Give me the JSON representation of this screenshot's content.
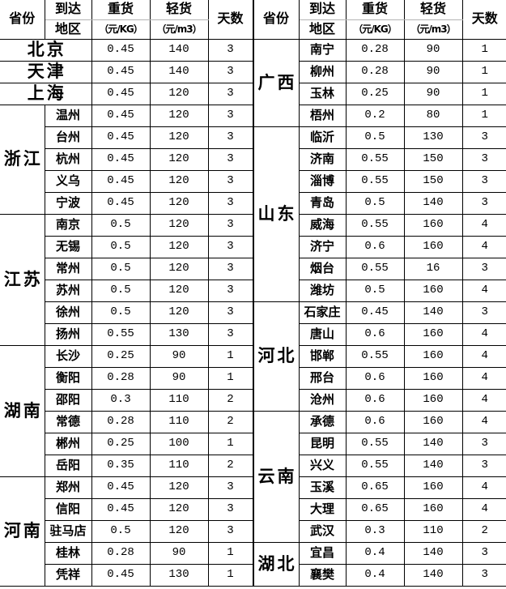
{
  "colors": {
    "background": "#ffffff",
    "text": "#000000",
    "grid_border": "#000000",
    "header_divider": "#b3b3b3"
  },
  "header": {
    "province": "省份",
    "area_line1": "到达",
    "area_line2": "地区",
    "heavy_line1": "重货",
    "heavy_line2": "（元/KG）",
    "light_line1": "轻货",
    "light_line2": "（元/m3）",
    "days": "天数"
  },
  "tables": [
    {
      "side": "left",
      "groups": [
        {
          "province": "北京",
          "merged": true,
          "cities": [
            {
              "name": "北京",
              "heavy": "0.45",
              "light": "140",
              "days": "3"
            }
          ]
        },
        {
          "province": "天津",
          "merged": true,
          "cities": [
            {
              "name": "天津",
              "heavy": "0.45",
              "light": "140",
              "days": "3"
            }
          ]
        },
        {
          "province": "上海",
          "merged": true,
          "cities": [
            {
              "name": "上海",
              "heavy": "0.45",
              "light": "120",
              "days": "3"
            }
          ]
        },
        {
          "province": "浙江",
          "merged": false,
          "cities": [
            {
              "name": "温州",
              "heavy": "0.45",
              "light": "120",
              "days": "3"
            },
            {
              "name": "台州",
              "heavy": "0.45",
              "light": "120",
              "days": "3"
            },
            {
              "name": "杭州",
              "heavy": "0.45",
              "light": "120",
              "days": "3"
            },
            {
              "name": "义乌",
              "heavy": "0.45",
              "light": "120",
              "days": "3"
            },
            {
              "name": "宁波",
              "heavy": "0.45",
              "light": "120",
              "days": "3"
            }
          ]
        },
        {
          "province": "江苏",
          "merged": false,
          "cities": [
            {
              "name": "南京",
              "heavy": "0.5",
              "light": "120",
              "days": "3"
            },
            {
              "name": "无锡",
              "heavy": "0.5",
              "light": "120",
              "days": "3"
            },
            {
              "name": "常州",
              "heavy": "0.5",
              "light": "120",
              "days": "3"
            },
            {
              "name": "苏州",
              "heavy": "0.5",
              "light": "120",
              "days": "3"
            },
            {
              "name": "徐州",
              "heavy": "0.5",
              "light": "120",
              "days": "3"
            },
            {
              "name": "扬州",
              "heavy": "0.55",
              "light": "130",
              "days": "3"
            }
          ]
        },
        {
          "province": "湖南",
          "merged": false,
          "cities": [
            {
              "name": "长沙",
              "heavy": "0.25",
              "light": "90",
              "days": "1"
            },
            {
              "name": "衡阳",
              "heavy": "0.28",
              "light": "90",
              "days": "1"
            },
            {
              "name": "邵阳",
              "heavy": "0.3",
              "light": "110",
              "days": "2"
            },
            {
              "name": "常德",
              "heavy": "0.28",
              "light": "110",
              "days": "2"
            },
            {
              "name": "郴州",
              "heavy": "0.25",
              "light": "100",
              "days": "1"
            },
            {
              "name": "岳阳",
              "heavy": "0.35",
              "light": "110",
              "days": "2"
            }
          ]
        },
        {
          "province": "河南",
          "merged": false,
          "cities": [
            {
              "name": "郑州",
              "heavy": "0.45",
              "light": "120",
              "days": "3"
            },
            {
              "name": "信阳",
              "heavy": "0.45",
              "light": "120",
              "days": "3"
            },
            {
              "name": "驻马店",
              "heavy": "0.5",
              "light": "120",
              "days": "3"
            },
            {
              "name": "桂林",
              "heavy": "0.28",
              "light": "90",
              "days": "1"
            },
            {
              "name": "凭祥",
              "heavy": "0.45",
              "light": "130",
              "days": "1"
            }
          ]
        }
      ]
    },
    {
      "side": "right",
      "groups": [
        {
          "province": "广西",
          "merged": false,
          "cities": [
            {
              "name": "南宁",
              "heavy": "0.28",
              "light": "90",
              "days": "1"
            },
            {
              "name": "柳州",
              "heavy": "0.28",
              "light": "90",
              "days": "1"
            },
            {
              "name": "玉林",
              "heavy": "0.25",
              "light": "90",
              "days": "1"
            },
            {
              "name": "梧州",
              "heavy": "0.2",
              "light": "80",
              "days": "1"
            }
          ]
        },
        {
          "province": "山东",
          "merged": false,
          "cities": [
            {
              "name": "临沂",
              "heavy": "0.5",
              "light": "130",
              "days": "3"
            },
            {
              "name": "济南",
              "heavy": "0.55",
              "light": "150",
              "days": "3"
            },
            {
              "name": "淄博",
              "heavy": "0.55",
              "light": "150",
              "days": "3"
            },
            {
              "name": "青岛",
              "heavy": "0.5",
              "light": "140",
              "days": "3"
            },
            {
              "name": "威海",
              "heavy": "0.55",
              "light": "160",
              "days": "4"
            },
            {
              "name": "济宁",
              "heavy": "0.6",
              "light": "160",
              "days": "4"
            },
            {
              "name": "烟台",
              "heavy": "0.55",
              "light": "16",
              "days": "3"
            },
            {
              "name": "潍坊",
              "heavy": "0.5",
              "light": "160",
              "days": "4"
            }
          ]
        },
        {
          "province": "河北",
          "merged": false,
          "cities": [
            {
              "name": "石家庄",
              "heavy": "0.45",
              "light": "140",
              "days": "3"
            },
            {
              "name": "唐山",
              "heavy": "0.6",
              "light": "160",
              "days": "4"
            },
            {
              "name": "邯郸",
              "heavy": "0.55",
              "light": "160",
              "days": "4"
            },
            {
              "name": "邢台",
              "heavy": "0.6",
              "light": "160",
              "days": "4"
            },
            {
              "name": "沧州",
              "heavy": "0.6",
              "light": "160",
              "days": "4"
            }
          ]
        },
        {
          "province": "云南",
          "merged": false,
          "cities": [
            {
              "name": "承德",
              "heavy": "0.6",
              "light": "160",
              "days": "4"
            },
            {
              "name": "昆明",
              "heavy": "0.55",
              "light": "140",
              "days": "3"
            },
            {
              "name": "兴义",
              "heavy": "0.55",
              "light": "140",
              "days": "3"
            },
            {
              "name": "玉溪",
              "heavy": "0.65",
              "light": "160",
              "days": "4"
            },
            {
              "name": "大理",
              "heavy": "0.65",
              "light": "160",
              "days": "4"
            },
            {
              "name": "武汉",
              "heavy": "0.3",
              "light": "110",
              "days": "2"
            }
          ]
        },
        {
          "province": "湖北",
          "merged": false,
          "cities": [
            {
              "name": "宜昌",
              "heavy": "0.4",
              "light": "140",
              "days": "3"
            },
            {
              "name": "襄樊",
              "heavy": "0.4",
              "light": "140",
              "days": "3"
            }
          ]
        }
      ]
    }
  ]
}
